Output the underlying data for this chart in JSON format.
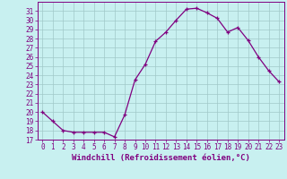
{
  "x": [
    0,
    1,
    2,
    3,
    4,
    5,
    6,
    7,
    8,
    9,
    10,
    11,
    12,
    13,
    14,
    15,
    16,
    17,
    18,
    19,
    20,
    21,
    22,
    23
  ],
  "y": [
    20,
    19,
    18,
    17.8,
    17.8,
    17.8,
    17.8,
    17.3,
    19.7,
    23.5,
    25.2,
    27.7,
    28.7,
    30.0,
    31.2,
    31.3,
    30.8,
    30.2,
    28.7,
    29.2,
    27.8,
    26.0,
    24.5,
    23.3
  ],
  "line_color": "#800080",
  "marker": "+",
  "marker_color": "#800080",
  "bg_color": "#c8f0f0",
  "grid_color": "#a0c8c8",
  "xlabel": "Windchill (Refroidissement éolien,°C)",
  "ylim": [
    17,
    32
  ],
  "xlim_min": -0.5,
  "xlim_max": 23.5,
  "yticks": [
    17,
    18,
    19,
    20,
    21,
    22,
    23,
    24,
    25,
    26,
    27,
    28,
    29,
    30,
    31
  ],
  "xticks": [
    0,
    1,
    2,
    3,
    4,
    5,
    6,
    7,
    8,
    9,
    10,
    11,
    12,
    13,
    14,
    15,
    16,
    17,
    18,
    19,
    20,
    21,
    22,
    23
  ],
  "tick_color": "#800080",
  "spine_color": "#800080",
  "label_color": "#800080",
  "label_fontsize": 6.5,
  "tick_fontsize": 5.5,
  "markersize": 3,
  "linewidth": 0.9
}
